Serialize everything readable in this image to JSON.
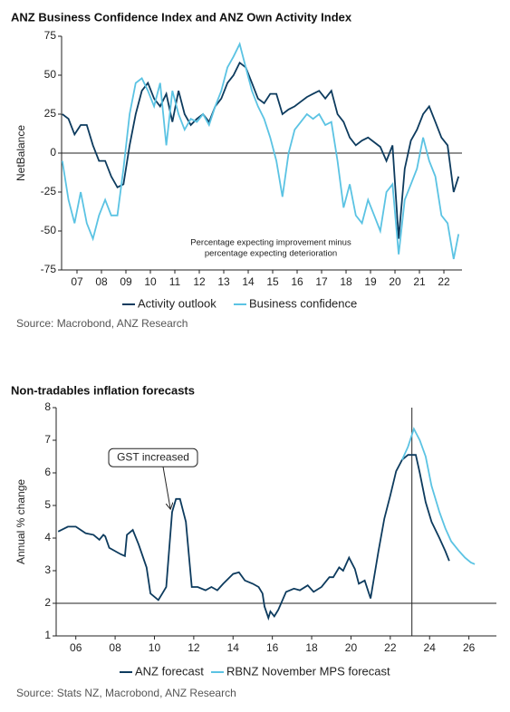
{
  "chart_data": [
    {
      "type": "line",
      "title": "ANZ Business Confidence Index and ANZ Own Activity Index",
      "y_label": "NetBalance",
      "x": [
        2006.4,
        2006.65,
        2006.9,
        2007.15,
        2007.4,
        2007.65,
        2007.9,
        2008.15,
        2008.4,
        2008.65,
        2008.9,
        2009.15,
        2009.4,
        2009.65,
        2009.9,
        2010.15,
        2010.4,
        2010.65,
        2010.9,
        2011.15,
        2011.4,
        2011.65,
        2011.9,
        2012.15,
        2012.4,
        2012.65,
        2012.9,
        2013.15,
        2013.4,
        2013.65,
        2013.9,
        2014.15,
        2014.4,
        2014.65,
        2014.9,
        2015.15,
        2015.4,
        2015.65,
        2015.9,
        2016.15,
        2016.4,
        2016.65,
        2016.9,
        2017.15,
        2017.4,
        2017.65,
        2017.9,
        2018.15,
        2018.4,
        2018.65,
        2018.9,
        2019.15,
        2019.4,
        2019.65,
        2019.9,
        2020.15,
        2020.4,
        2020.65,
        2020.9,
        2021.15,
        2021.4,
        2021.65,
        2021.9,
        2022.15,
        2022.4,
        2022.6
      ],
      "series": [
        {
          "name": "Activity outlook",
          "color": "#0d3b5e",
          "values": [
            25,
            22,
            12,
            18,
            18,
            5,
            -5,
            -5,
            -15,
            -22,
            -20,
            5,
            25,
            40,
            45,
            35,
            30,
            38,
            20,
            40,
            25,
            18,
            22,
            25,
            20,
            30,
            35,
            45,
            50,
            58,
            55,
            45,
            35,
            32,
            38,
            38,
            25,
            28,
            30,
            33,
            36,
            38,
            40,
            35,
            40,
            25,
            20,
            10,
            5,
            8,
            10,
            7,
            4,
            -5,
            5,
            -55,
            -10,
            8,
            15,
            25,
            30,
            20,
            10,
            5,
            -25,
            -15
          ]
        },
        {
          "name": "Business confidence",
          "color": "#5bc3e3",
          "values": [
            -5,
            -30,
            -45,
            -25,
            -45,
            -55,
            -40,
            -30,
            -40,
            -40,
            -10,
            25,
            45,
            48,
            40,
            30,
            45,
            5,
            40,
            25,
            15,
            22,
            20,
            25,
            18,
            30,
            40,
            55,
            62,
            70,
            55,
            40,
            30,
            22,
            10,
            -5,
            -28,
            0,
            15,
            20,
            25,
            22,
            25,
            18,
            20,
            -5,
            -35,
            -20,
            -40,
            -45,
            -30,
            -40,
            -50,
            -25,
            -20,
            -65,
            -30,
            -20,
            -10,
            10,
            -5,
            -15,
            -40,
            -45,
            -68,
            -52
          ]
        }
      ],
      "xlim": [
        2006.37,
        2022.74
      ],
      "xticks": [
        {
          "value": 2007,
          "label": "07"
        },
        {
          "value": 2008,
          "label": "08"
        },
        {
          "value": 2009,
          "label": "09"
        },
        {
          "value": 2010,
          "label": "10"
        },
        {
          "value": 2011,
          "label": "11"
        },
        {
          "value": 2012,
          "label": "12"
        },
        {
          "value": 2013,
          "label": "13"
        },
        {
          "value": 2014,
          "label": "14"
        },
        {
          "value": 2015,
          "label": "15"
        },
        {
          "value": 2016,
          "label": "16"
        },
        {
          "value": 2017,
          "label": "17"
        },
        {
          "value": 2018,
          "label": "18"
        },
        {
          "value": 2019,
          "label": "19"
        },
        {
          "value": 2020,
          "label": "20"
        },
        {
          "value": 2021,
          "label": "21"
        },
        {
          "value": 2022,
          "label": "22"
        }
      ],
      "ylim": [
        -75,
        75
      ],
      "yticks": [
        75,
        50,
        25,
        0,
        -25,
        -50,
        -75
      ],
      "hline": 0,
      "annotation": [
        "Percentage expecting improvement minus",
        "percentage expecting deterioration"
      ],
      "source": "Source: Macrobond, ANZ Research"
    },
    {
      "type": "line",
      "title": "Non-tradables inflation forecasts",
      "y_label": "Annual % change",
      "series": [
        {
          "name": "ANZ forecast",
          "color": "#0d3b5e",
          "x": [
            2005.1,
            2005.6,
            2006,
            2006.5,
            2006.9,
            2007.2,
            2007.4,
            2007.5,
            2007.7,
            2008.3,
            2008.5,
            2008.6,
            2008.9,
            2009.2,
            2009.6,
            2009.8,
            2010.2,
            2010.4,
            2010.6,
            2010.9,
            2011.1,
            2011.3,
            2011.6,
            2011.9,
            2012.2,
            2012.6,
            2012.9,
            2013.2,
            2013.5,
            2014.0,
            2014.3,
            2014.6,
            2015.0,
            2015.3,
            2015.5,
            2015.6,
            2015.8,
            2015.9,
            2016.1,
            2016.3,
            2016.7,
            2017.1,
            2017.4,
            2017.8,
            2018.1,
            2018.5,
            2018.9,
            2019.1,
            2019.4,
            2019.6,
            2019.9,
            2020.2,
            2020.4,
            2020.7,
            2021.0,
            2021.4,
            2021.7,
            2022.0,
            2022.3,
            2022.6,
            2022.9,
            2023.3,
            2023.5,
            2023.8,
            2024.1,
            2024.5,
            2024.8,
            2025.0
          ],
          "values": [
            4.2,
            4.35,
            4.35,
            4.15,
            4.1,
            3.95,
            4.1,
            4.05,
            3.7,
            3.5,
            3.45,
            4.1,
            4.25,
            3.8,
            3.1,
            2.3,
            2.1,
            2.3,
            2.5,
            4.8,
            5.2,
            5.2,
            4.5,
            2.5,
            2.5,
            2.4,
            2.5,
            2.4,
            2.6,
            2.9,
            2.95,
            2.7,
            2.6,
            2.5,
            2.3,
            1.9,
            1.55,
            1.75,
            1.6,
            1.8,
            2.35,
            2.45,
            2.4,
            2.55,
            2.35,
            2.5,
            2.8,
            2.8,
            3.1,
            3.0,
            3.4,
            3.05,
            2.6,
            2.7,
            2.15,
            3.6,
            4.6,
            5.3,
            6.05,
            6.4,
            6.55,
            6.55,
            6.0,
            5.1,
            4.5,
            4.0,
            3.6,
            3.3
          ]
        },
        {
          "name": "RBNZ November MPS forecast",
          "color": "#5bc3e3",
          "x": [
            2022.6,
            2022.9,
            2023.2,
            2023.5,
            2023.8,
            2024.1,
            2024.5,
            2024.8,
            2025.1,
            2025.5,
            2025.8,
            2026.1,
            2026.3
          ],
          "values": [
            6.4,
            6.8,
            7.35,
            7.0,
            6.5,
            5.6,
            4.8,
            4.3,
            3.9,
            3.6,
            3.4,
            3.25,
            3.2
          ]
        }
      ],
      "xlim": [
        2005,
        2027.4
      ],
      "xticks": [
        {
          "value": 2006,
          "label": "06"
        },
        {
          "value": 2008,
          "label": "08"
        },
        {
          "value": 2010,
          "label": "10"
        },
        {
          "value": 2012,
          "label": "12"
        },
        {
          "value": 2014,
          "label": "14"
        },
        {
          "value": 2016,
          "label": "16"
        },
        {
          "value": 2018,
          "label": "18"
        },
        {
          "value": 2020,
          "label": "20"
        },
        {
          "value": 2022,
          "label": "22"
        },
        {
          "value": 2024,
          "label": "24"
        },
        {
          "value": 2026,
          "label": "26"
        }
      ],
      "ylim": [
        1,
        8
      ],
      "yticks": [
        8,
        7,
        6,
        5,
        4,
        3,
        2,
        1
      ],
      "hline": 2,
      "vline": 2023.1,
      "annotations": [
        {
          "text": "GST increased",
          "x": 2010.9,
          "y": 4.8
        }
      ],
      "source": "Source: Stats NZ, Macrobond, ANZ Research"
    }
  ]
}
